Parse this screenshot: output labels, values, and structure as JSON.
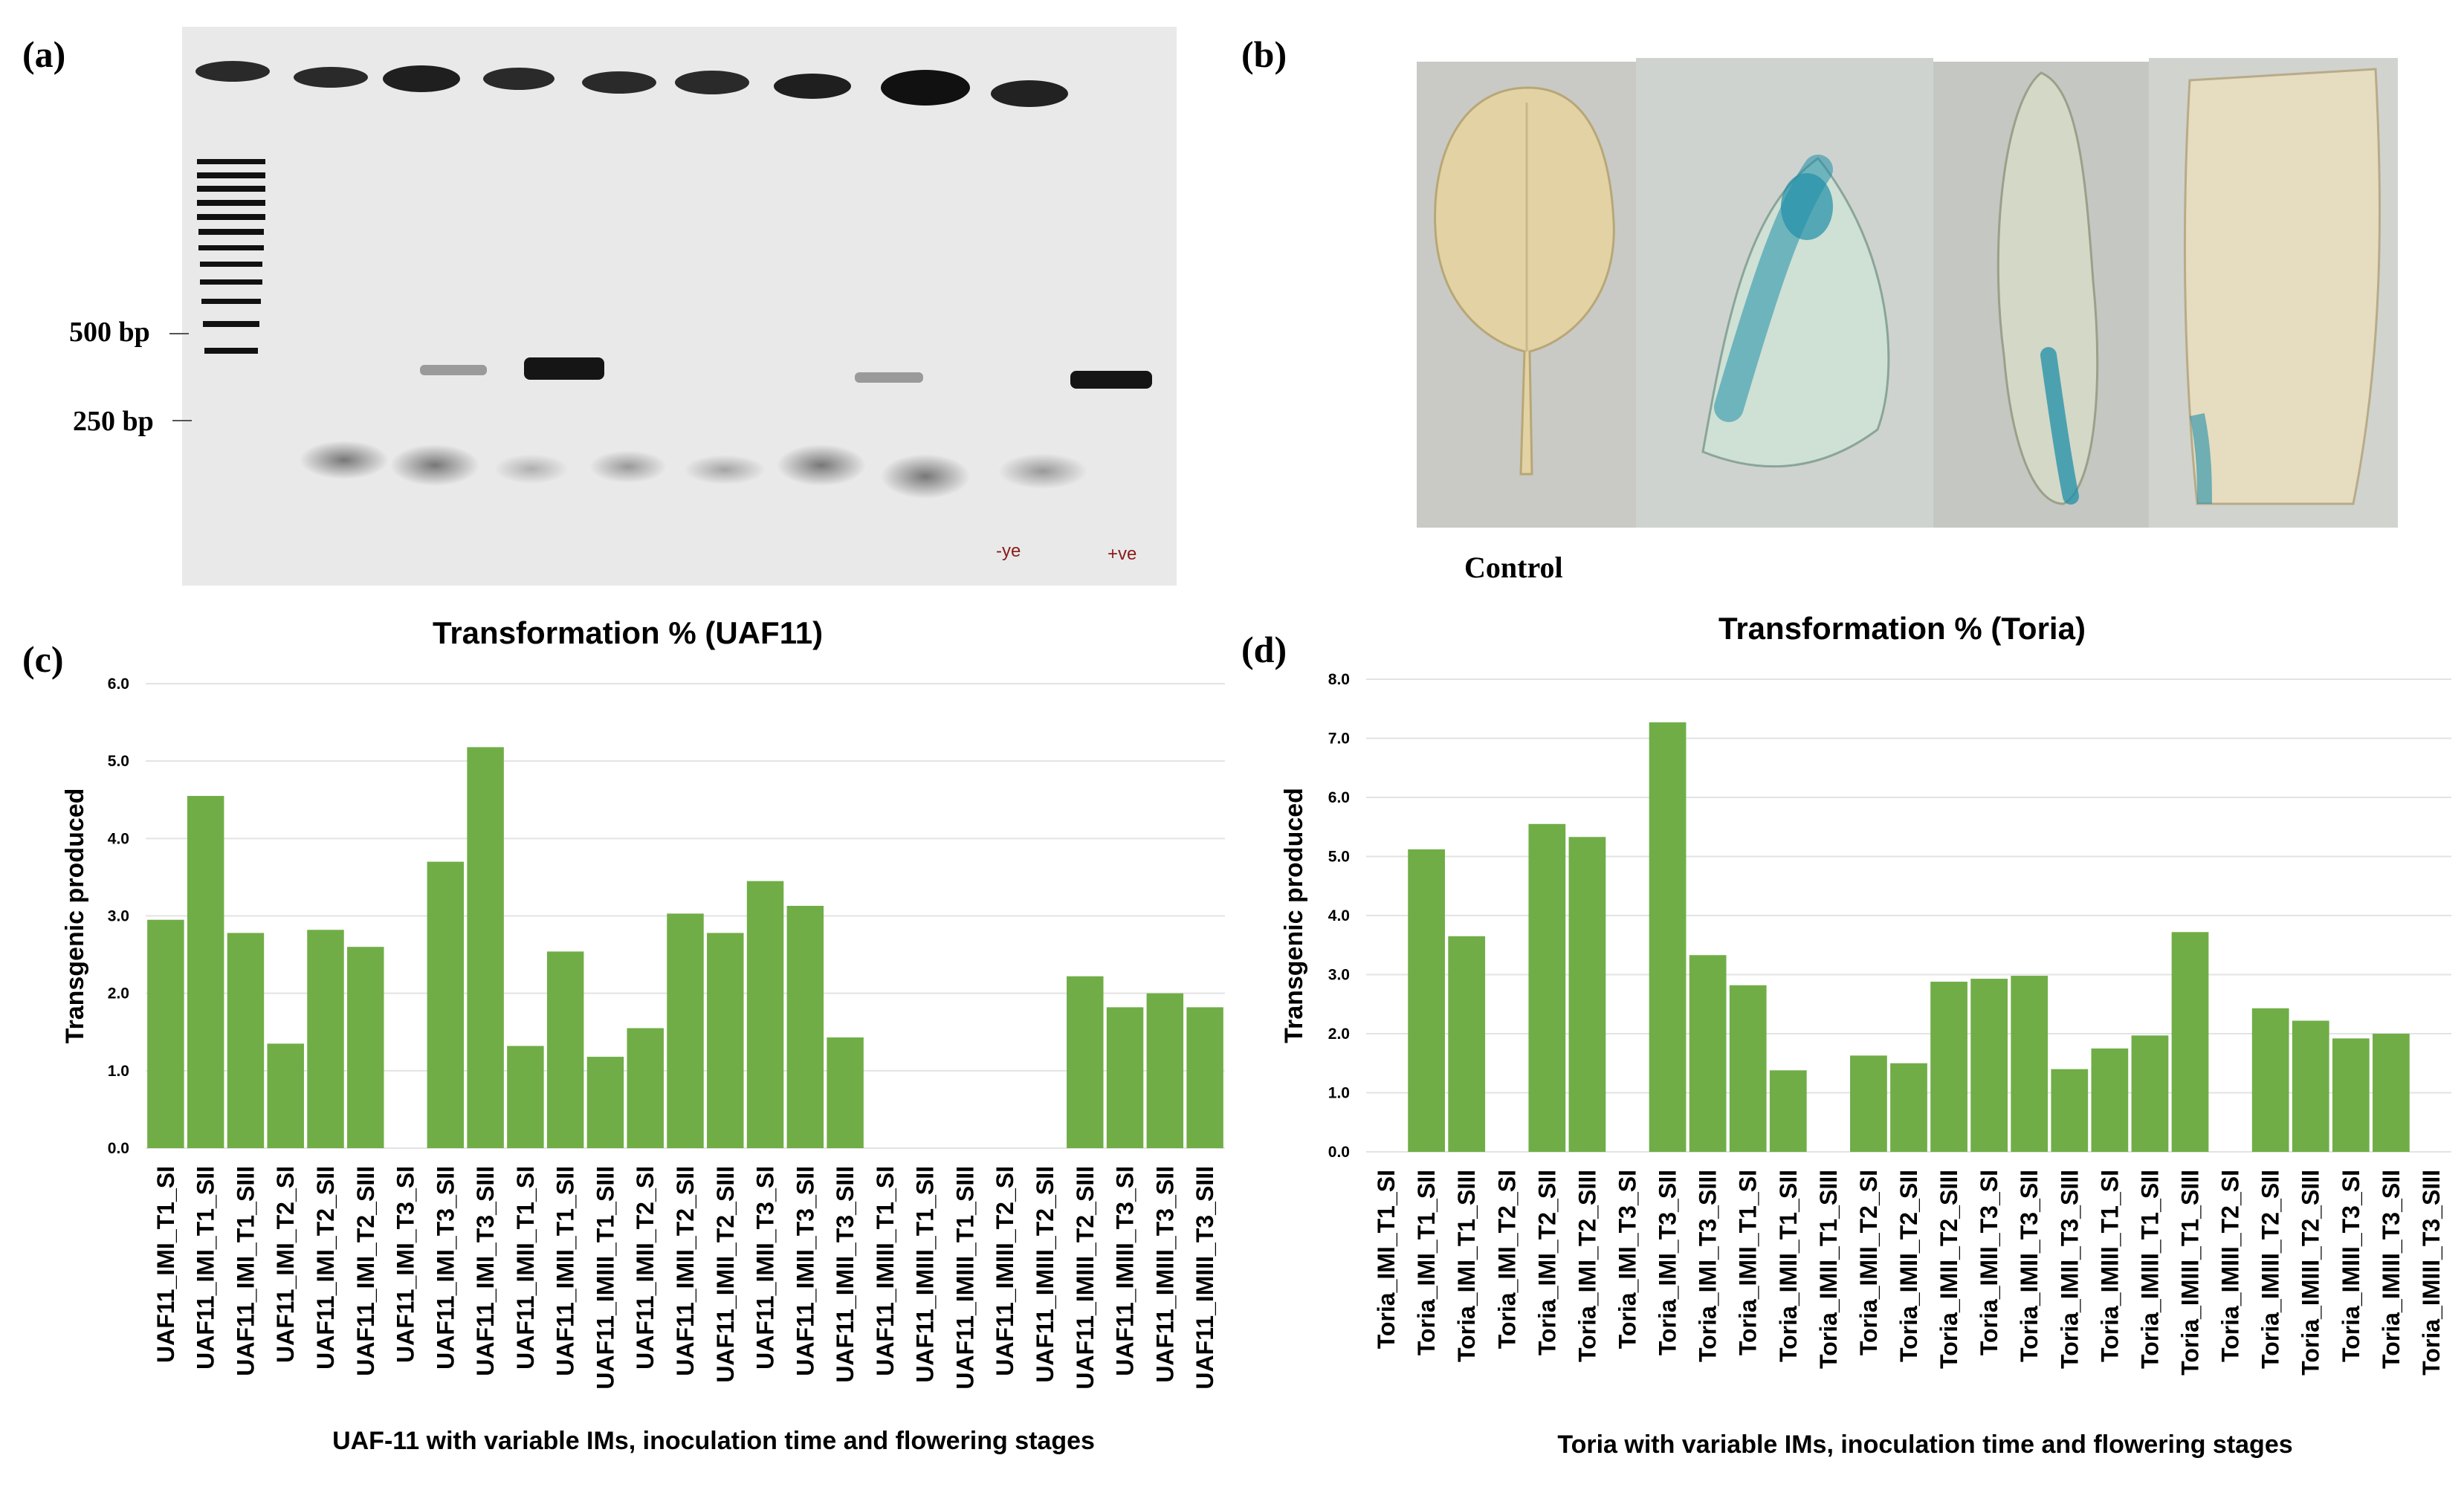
{
  "panels": {
    "a": "(a)",
    "b": "(b)",
    "c": "(c)",
    "d": "(d)"
  },
  "gel": {
    "marker_500": "500 bp",
    "marker_250": "250 bp",
    "neg_label": "-ye",
    "pos_label": "+ve",
    "label_color": "#8b1a1a"
  },
  "photo": {
    "control_label": "Control",
    "stain_color": "#1f8fa8"
  },
  "colors": {
    "bar": "#70ad47",
    "grid": "#e3e3e3"
  },
  "chart_data": [
    {
      "type": "bar",
      "title": "Transformation % (UAF11)",
      "xlabel": "UAF-11 with variable IMs, inoculation time and flowering stages",
      "ylabel": "Transgenic  produced",
      "ylim": [
        0,
        6
      ],
      "yticks": [
        "0.0",
        "1.0",
        "2.0",
        "3.0",
        "4.0",
        "5.0",
        "6.0"
      ],
      "grid": true,
      "categories": [
        "UAF11_IMI_T1_SI",
        "UAF11_IMI_T1_SII",
        "UAF11_IMI_T1_SIII",
        "UAF11_IMI_T2_SI",
        "UAF11_IMI_T2_SII",
        "UAF11_IMI_T2_SIII",
        "UAF11_IMI_T3_SI",
        "UAF11_IMI_T3_SII",
        "UAF11_IMI_T3_SIII",
        "UAF11_IMII_T1_SI",
        "UAF11_IMII_T1_SII",
        "UAF11_IMIII_T1_SIII",
        "UAF11_IMII_T2_SI",
        "UAF11_IMII_T2_SII",
        "UAF11_IMII_T2_SIII",
        "UAF11_IMII_T3_SI",
        "UAF11_IMII_T3_SII",
        "UAF11_IMII_T3_SIII",
        "UAF11_IMIII_T1_SI",
        "UAF11_IMIII_T1_SII",
        "UAF11_IMIII_T1_SIII",
        "UAF11_IMIII_T2_SI",
        "UAF11_IMIII_T2_SII",
        "UAF11_IMIII_T2_SIII",
        "UAF11_IMIII_T3_SI",
        "UAF11_IMIII_T3_SII",
        "UAF11_IMIII_T3_SIII"
      ],
      "values": [
        2.95,
        4.55,
        2.78,
        1.35,
        2.82,
        2.6,
        0,
        3.7,
        5.18,
        1.32,
        2.54,
        1.18,
        1.55,
        3.03,
        2.78,
        3.45,
        3.13,
        1.43,
        0,
        0,
        0,
        0,
        0,
        2.22,
        1.82,
        2.0,
        1.82
      ]
    },
    {
      "type": "bar",
      "title": "Transformation % (Toria)",
      "xlabel": "Toria with variable IMs, inoculation time and flowering stages",
      "ylabel": "Transgenic  produced",
      "ylim": [
        0,
        8
      ],
      "yticks": [
        "0.0",
        "1.0",
        "2.0",
        "3.0",
        "4.0",
        "5.0",
        "6.0",
        "7.0",
        "8.0"
      ],
      "grid": true,
      "categories": [
        "Toria_IMI_T1_SI",
        "Toria_IMI_T1_SII",
        "Toria_IMI_T1_SIII",
        "Toria_IMI_T2_SI",
        "Toria_IMI_T2_SII",
        "Toria_IMI_T2_SIII",
        "Toria_IMI_T3_SI",
        "Toria_IMI_T3_SII",
        "Toria_IMI_T3_SIII",
        "Toria_IMII_T1_SI",
        "Toria_IMII_T1_SII",
        "Toria_IMII_T1_SIII",
        "Toria_IMII_T2_SI",
        "Toria_IMII_T2_SII",
        "Toria_IMII_T2_SIII",
        "Toria_IMII_T3_SI",
        "Toria_IMII_T3_SII",
        "Toria_IMII_T3_SIII",
        "Toria_IMIII_T1_SI",
        "Toria_IMIII_T1_SII",
        "Toria_IMIII_T1_SIII",
        "Toria_IMIII_T2_SI",
        "Toria_IMIII_T2_SII",
        "Toria_IMIII_T2_SIII",
        "Toria_IMIII_T3_SI",
        "Toria_IMIII_T3_SII",
        "Toria_IMIII_T3_SIII"
      ],
      "values": [
        0,
        5.12,
        3.65,
        0,
        5.55,
        5.33,
        0,
        7.27,
        3.33,
        2.82,
        1.38,
        0,
        1.63,
        1.5,
        2.88,
        2.93,
        2.98,
        1.4,
        1.75,
        1.97,
        3.72,
        0,
        2.43,
        2.22,
        1.92,
        2.0,
        0
      ]
    }
  ]
}
